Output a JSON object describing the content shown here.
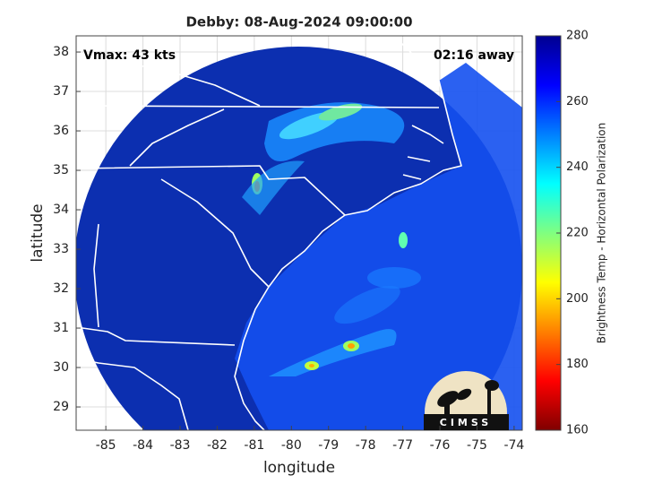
{
  "chart_data": {
    "type": "map",
    "title": "Debby: 08-Aug-2024 09:00:00",
    "annotations": [
      "Vmax: 43 kts",
      "02:16 away"
    ],
    "xlabel": "longitude",
    "ylabel": "latitude",
    "xlim": [
      -85.8,
      -73.78
    ],
    "ylim": [
      28.41,
      38.41
    ],
    "xticks": [
      -85,
      -84,
      -83,
      -82,
      -81,
      -80,
      -79,
      -78,
      -77,
      -76,
      -75,
      -74
    ],
    "yticks": [
      29,
      30,
      31,
      32,
      33,
      34,
      35,
      36,
      37,
      38
    ],
    "grid": true,
    "colorbar": {
      "label": "Brightness Temp - Horizontal Polarization",
      "lim": [
        160,
        280
      ],
      "ticks": [
        160,
        180,
        200,
        220,
        240,
        260,
        280
      ],
      "colormap": [
        "#800000",
        "#ff0000",
        "#ff8000",
        "#ffff00",
        "#80ff80",
        "#00ffff",
        "#0080ff",
        "#0000ff",
        "#000090"
      ]
    },
    "logo": "CIMSS"
  }
}
